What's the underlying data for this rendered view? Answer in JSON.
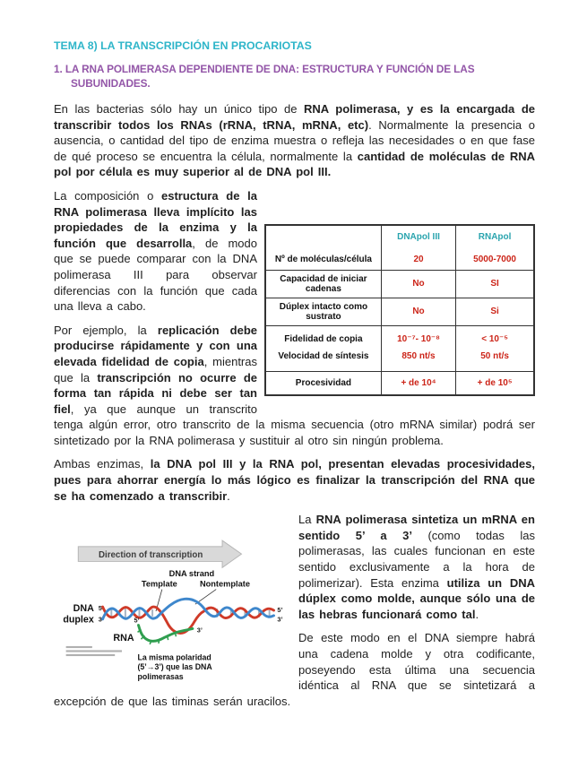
{
  "page": {
    "title": "TEMA 8) LA TRANSCRIPCIÓN EN PROCARIOTAS",
    "section_heading": "1. LA RNA POLIMERASA DEPENDIENTE DE DNA: ESTRUCTURA Y FUNCIÓN DE LAS SUBUNIDADES."
  },
  "colors": {
    "title": "#2eb5c9",
    "heading": "#9356a8",
    "table_header": "#2aa4ae",
    "table_value": "#cc2418",
    "body": "#1f1f1f",
    "dna_red": "#cf3a28",
    "dna_blue": "#3e87cc",
    "rna_green": "#2f9e4f",
    "arrow_gray": "#d9d9d9"
  },
  "paragraphs": {
    "intro": [
      {
        "t": "En las bacterias sólo hay un único tipo de ",
        "b": false
      },
      {
        "t": "RNA polimerasa, y es la encargada de transcribir todos los RNAs (rRNA, tRNA, mRNA, etc)",
        "b": true
      },
      {
        "t": ". Normalmente la presencia o ausencia, o cantidad del tipo de enzima muestra o refleja las necesidades o en que fase de qué proceso se encuentra la célula, normalmente la ",
        "b": false
      },
      {
        "t": "cantidad de moléculas de RNA pol por célula es muy superior al de DNA pol III.",
        "b": true
      }
    ],
    "composition": [
      {
        "t": "La composición o ",
        "b": false
      },
      {
        "t": "estructura de la RNA polimerasa lleva implícito las propiedades de la enzima y la función que desarrolla",
        "b": true
      },
      {
        "t": ", de modo que se puede comparar con la DNA polimerasa III para observar diferencias con la función que cada una lleva a cabo.",
        "b": false
      }
    ],
    "example": [
      {
        "t": "Por ejemplo, la ",
        "b": false
      },
      {
        "t": "replicación debe producirse rápidamente y con una elevada fidelidad de copia",
        "b": true
      },
      {
        "t": ", mientras que la ",
        "b": false
      },
      {
        "t": "transcripción no ocurre de forma tan rápida ni debe ser tan fiel",
        "b": true
      },
      {
        "t": ", ya que aunque un transcrito tenga algún error, otro transcrito de la misma secuencia (otro mRNA similar) podrá ser sintetizado por la RNA polimerasa y sustituir al otro sin ningún problema.",
        "b": false
      }
    ],
    "both_enzymes": [
      {
        "t": "Ambas enzimas, ",
        "b": false
      },
      {
        "t": "la DNA pol III y la RNA pol, presentan elevadas procesividades, pues para ahorrar energía lo más lógico es finalizar la transcripción del RNA que se ha comenzado a transcribir",
        "b": true
      },
      {
        "t": ".",
        "b": false
      }
    ],
    "synthesis": [
      {
        "t": "La ",
        "b": false
      },
      {
        "t": "RNA polimerasa sintetiza un mRNA en sentido 5’ a 3’",
        "b": true
      },
      {
        "t": " (como todas las polimerasas, las cuales funcionan en este sentido exclusivamente a la hora de polimerizar). Esta enzima ",
        "b": false
      },
      {
        "t": "utiliza un DNA dúplex como molde, aunque sólo una de las hebras funcionará como tal",
        "b": true
      },
      {
        "t": ".",
        "b": false
      }
    ],
    "template_strand": [
      {
        "t": "De este modo en el DNA siempre habrá una cadena molde y otra codificante, poseyendo esta última una secuencia idéntica al RNA que se sintetizará a excepción de que las timinas serán uracilos.",
        "b": false
      }
    ]
  },
  "table": {
    "col1_header": "DNApol III",
    "col2_header": "RNApol",
    "rows": [
      {
        "label": "Nº de moléculas/célula",
        "col1": "20",
        "col2": "5000-7000"
      },
      {
        "label": "Capacidad de iniciar cadenas",
        "col1": "No",
        "col2": "SI"
      },
      {
        "label": "Dúplex intacto como sustrato",
        "col1": "No",
        "col2": "Si"
      },
      {
        "label": "Fidelidad de copia",
        "col1": "10⁻⁷- 10⁻⁸",
        "col2": "< 10⁻⁵"
      },
      {
        "label": "Velocidad de síntesis",
        "col1": "850 nt/s",
        "col2": "50 nt/s"
      },
      {
        "label": "Procesividad",
        "col1": "+ de 10⁴",
        "col2": "+ de 10⁵"
      }
    ]
  },
  "figure": {
    "arrow_label": "Direction of transcription",
    "dna_strand_label": "DNA strand",
    "template_label": "Template",
    "nontemplate_label": "Nontemplate",
    "dna_label": "DNA",
    "duplex_label": "duplex",
    "rna_label": "RNA",
    "prime5": "5’",
    "prime3": "3’",
    "caption_line1": "La misma polaridad",
    "caption_line2": "(5’→3’) que las DNA",
    "caption_line3": "polimerasas"
  }
}
